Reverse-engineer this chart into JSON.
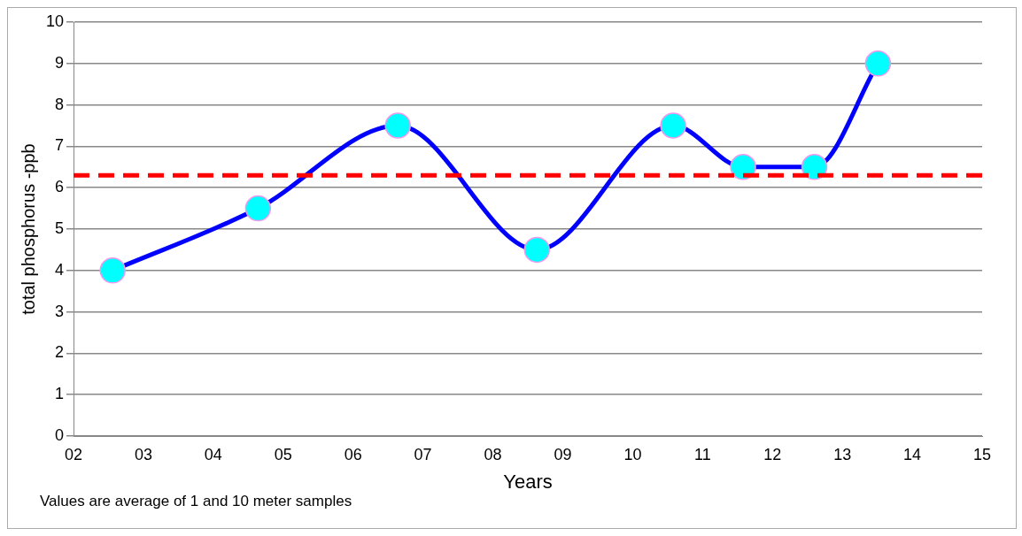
{
  "chart_data": {
    "type": "line",
    "xlabel": "Years",
    "ylabel": "total phosphorus -ppb",
    "annotations": [
      "Values are average of 1 and 10 meter samples"
    ],
    "x": [
      2.56,
      4.64,
      6.64,
      8.63,
      10.58,
      11.58,
      12.6,
      13.51
    ],
    "series": [
      {
        "color": "#0000ff",
        "values": [
          4,
          5.5,
          7.5,
          4.5,
          7.5,
          6.5,
          6.5,
          9
        ]
      }
    ],
    "xlim": [
      2,
      15
    ],
    "xticks": [
      {
        "value": 2,
        "label": "02"
      },
      {
        "value": 3,
        "label": "03"
      },
      {
        "value": 4,
        "label": "04"
      },
      {
        "value": 5,
        "label": "05"
      },
      {
        "value": 6,
        "label": "06"
      },
      {
        "value": 7,
        "label": "07"
      },
      {
        "value": 8,
        "label": "08"
      },
      {
        "value": 9,
        "label": "09"
      },
      10,
      11,
      12,
      13,
      14,
      15
    ],
    "ylim": [
      0,
      10
    ],
    "yticks": [
      0,
      1,
      2,
      3,
      4,
      5,
      6,
      7,
      8,
      9,
      10
    ],
    "ref_lines": [
      {
        "axis": "y",
        "value": 6.3,
        "color": "#ff0000",
        "line_style": "dashed"
      }
    ],
    "grid": "y",
    "marker": "circle",
    "line_style": "solid",
    "legend": false
  }
}
